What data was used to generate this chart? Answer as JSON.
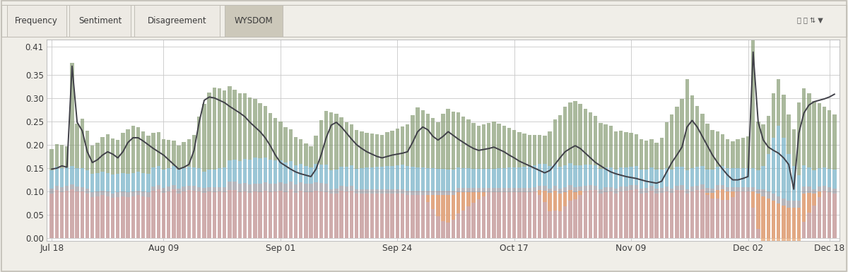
{
  "tab_labels": [
    "Frequency",
    "Sentiment",
    "Disagreement",
    "WYSDOM"
  ],
  "active_tab": 3,
  "yticks": [
    0.0,
    0.05,
    0.1,
    0.15,
    0.2,
    0.25,
    0.3,
    0.35,
    0.41
  ],
  "xtick_labels": [
    "Jul 18",
    "Aug 09",
    "Sep 01",
    "Sep 24",
    "Oct 17",
    "Nov 09",
    "Dec 02",
    "Dec 18"
  ],
  "n_bars": 155,
  "bar_width": 0.75,
  "background_color": "#ffffff",
  "fig_bg_color": "#f0eee8",
  "grid_color": "#c8c8c8",
  "colors": {
    "pink": "#c49898",
    "blue": "#82b8cc",
    "gray": "#909098",
    "green": "#8a9e78",
    "orange": "#e8a878",
    "line": "#404048"
  },
  "tab_bg_active": "#ccc8ba",
  "tab_bg_inactive": "#edeae4",
  "tab_border": "#c0bdb5",
  "outer_border": "#c0bdb5"
}
